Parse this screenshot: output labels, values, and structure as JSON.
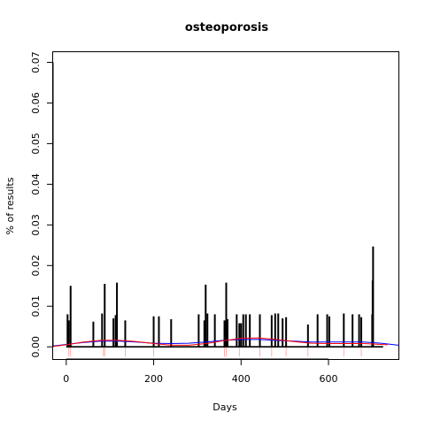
{
  "chart_data": {
    "type": "bar",
    "title": "osteoporosis",
    "xlabel": "Days",
    "ylabel": "% of results",
    "xlim": [
      -30,
      760
    ],
    "ylim": [
      -0.003,
      0.0725
    ],
    "x_ticks": [
      0,
      200,
      400,
      600
    ],
    "y_ticks": [
      0.0,
      0.01,
      0.02,
      0.03,
      0.04,
      0.05,
      0.06,
      0.07
    ],
    "y_tick_labels": [
      "0.00",
      "0.01",
      "0.02",
      "0.03",
      "0.04",
      "0.05",
      "0.06",
      "0.07"
    ],
    "grid": false,
    "baseline_range": [
      0,
      725
    ],
    "bars": [
      {
        "x": 3,
        "y": 0.008
      },
      {
        "x": 6,
        "y": 0.0065
      },
      {
        "x": 10,
        "y": 0.015
      },
      {
        "x": 62,
        "y": 0.0062
      },
      {
        "x": 82,
        "y": 0.0082
      },
      {
        "x": 88,
        "y": 0.0155
      },
      {
        "x": 108,
        "y": 0.007
      },
      {
        "x": 113,
        "y": 0.0078
      },
      {
        "x": 116,
        "y": 0.0158
      },
      {
        "x": 135,
        "y": 0.0065
      },
      {
        "x": 200,
        "y": 0.0075
      },
      {
        "x": 212,
        "y": 0.0075
      },
      {
        "x": 240,
        "y": 0.0068
      },
      {
        "x": 303,
        "y": 0.008
      },
      {
        "x": 316,
        "y": 0.0065
      },
      {
        "x": 319,
        "y": 0.0153
      },
      {
        "x": 323,
        "y": 0.0082
      },
      {
        "x": 340,
        "y": 0.008
      },
      {
        "x": 362,
        "y": 0.0065
      },
      {
        "x": 366,
        "y": 0.0158
      },
      {
        "x": 369,
        "y": 0.0068
      },
      {
        "x": 390,
        "y": 0.008
      },
      {
        "x": 396,
        "y": 0.0058
      },
      {
        "x": 400,
        "y": 0.0058
      },
      {
        "x": 405,
        "y": 0.008
      },
      {
        "x": 411,
        "y": 0.008
      },
      {
        "x": 420,
        "y": 0.008
      },
      {
        "x": 443,
        "y": 0.008
      },
      {
        "x": 470,
        "y": 0.0078
      },
      {
        "x": 478,
        "y": 0.0082
      },
      {
        "x": 485,
        "y": 0.0082
      },
      {
        "x": 495,
        "y": 0.007
      },
      {
        "x": 503,
        "y": 0.0073
      },
      {
        "x": 553,
        "y": 0.0055
      },
      {
        "x": 575,
        "y": 0.008
      },
      {
        "x": 597,
        "y": 0.008
      },
      {
        "x": 602,
        "y": 0.0075
      },
      {
        "x": 635,
        "y": 0.0082
      },
      {
        "x": 655,
        "y": 0.008
      },
      {
        "x": 670,
        "y": 0.008
      },
      {
        "x": 675,
        "y": 0.0073
      },
      {
        "x": 700,
        "y": 0.008
      },
      {
        "x": 701,
        "y": 0.0163
      },
      {
        "x": 702,
        "y": 0.0247
      }
    ],
    "rug_marks": [
      6,
      10,
      85,
      88,
      135,
      200,
      362,
      366,
      396,
      443,
      470,
      503,
      553,
      635,
      675
    ],
    "series": [
      {
        "color": "#0000ff",
        "x": [
          -30,
          0,
          40,
          80,
          120,
          160,
          200,
          240,
          280,
          320,
          360,
          400,
          440,
          480,
          520,
          560,
          600,
          640,
          680,
          720,
          760
        ],
        "y": [
          0.0002,
          0.0006,
          0.0011,
          0.0014,
          0.0014,
          0.0012,
          0.0009,
          0.0008,
          0.0009,
          0.0012,
          0.0016,
          0.0018,
          0.0018,
          0.0016,
          0.0014,
          0.0012,
          0.0012,
          0.0012,
          0.0012,
          0.0009,
          0.0004
        ]
      },
      {
        "color": "#ff0000",
        "x": [
          -30,
          0,
          40,
          80,
          120,
          160,
          200,
          240,
          280,
          320,
          360,
          400,
          440,
          480,
          520,
          560,
          600,
          640,
          680,
          720,
          735
        ],
        "y": [
          0.0001,
          0.0005,
          0.0012,
          0.0016,
          0.0016,
          0.0013,
          0.0008,
          0.0004,
          0.0004,
          0.0008,
          0.0015,
          0.0021,
          0.0022,
          0.0018,
          0.0013,
          0.0009,
          0.0008,
          0.0008,
          0.0008,
          0.0006,
          0.0005
        ]
      }
    ]
  }
}
